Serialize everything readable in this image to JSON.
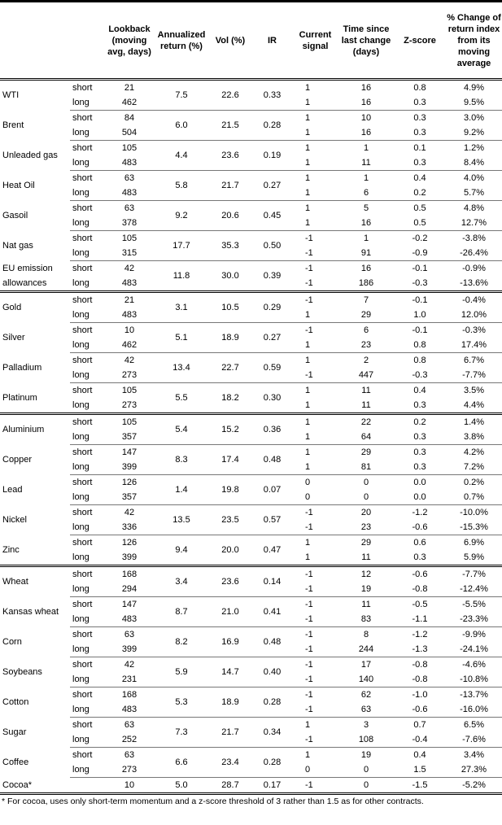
{
  "headers": [
    "",
    "",
    "Lookback (moving avg, days)",
    "Annualized return (%)",
    "Vol (%)",
    "IR",
    "Current signal",
    "Time since last change (days)",
    "Z-score",
    "% Change of return index from its moving average"
  ],
  "groups": [
    [
      {
        "name": "WTI",
        "ann": "7.5",
        "vol": "22.6",
        "ir": "0.33",
        "rows": [
          {
            "tenor": "short",
            "lookback": "21",
            "signal": "1",
            "time": "16",
            "z": "0.8",
            "pct": "4.9%"
          },
          {
            "tenor": "long",
            "lookback": "462",
            "signal": "1",
            "time": "16",
            "z": "0.3",
            "pct": "9.5%"
          }
        ]
      },
      {
        "name": "Brent",
        "ann": "6.0",
        "vol": "21.5",
        "ir": "0.28",
        "rows": [
          {
            "tenor": "short",
            "lookback": "84",
            "signal": "1",
            "time": "10",
            "z": "0.3",
            "pct": "3.0%"
          },
          {
            "tenor": "long",
            "lookback": "504",
            "signal": "1",
            "time": "16",
            "z": "0.3",
            "pct": "9.2%"
          }
        ]
      },
      {
        "name": "Unleaded gas",
        "ann": "4.4",
        "vol": "23.6",
        "ir": "0.19",
        "rows": [
          {
            "tenor": "short",
            "lookback": "105",
            "signal": "1",
            "time": "1",
            "z": "0.1",
            "pct": "1.2%"
          },
          {
            "tenor": "long",
            "lookback": "483",
            "signal": "1",
            "time": "11",
            "z": "0.3",
            "pct": "8.4%"
          }
        ]
      },
      {
        "name": "Heat Oil",
        "ann": "5.8",
        "vol": "21.7",
        "ir": "0.27",
        "rows": [
          {
            "tenor": "short",
            "lookback": "63",
            "signal": "1",
            "time": "1",
            "z": "0.4",
            "pct": "4.0%"
          },
          {
            "tenor": "long",
            "lookback": "483",
            "signal": "1",
            "time": "6",
            "z": "0.2",
            "pct": "5.7%"
          }
        ]
      },
      {
        "name": "Gasoil",
        "ann": "9.2",
        "vol": "20.6",
        "ir": "0.45",
        "rows": [
          {
            "tenor": "short",
            "lookback": "63",
            "signal": "1",
            "time": "5",
            "z": "0.5",
            "pct": "4.8%"
          },
          {
            "tenor": "long",
            "lookback": "378",
            "signal": "1",
            "time": "16",
            "z": "0.5",
            "pct": "12.7%"
          }
        ]
      },
      {
        "name": "Nat gas",
        "ann": "17.7",
        "vol": "35.3",
        "ir": "0.50",
        "rows": [
          {
            "tenor": "short",
            "lookback": "105",
            "signal": "-1",
            "time": "1",
            "z": "-0.2",
            "pct": "-3.8%"
          },
          {
            "tenor": "long",
            "lookback": "315",
            "signal": "-1",
            "time": "91",
            "z": "-0.9",
            "pct": "-26.4%"
          }
        ]
      },
      {
        "name": "EU emission allowances",
        "ann": "11.8",
        "vol": "30.0",
        "ir": "0.39",
        "rows": [
          {
            "tenor": "short",
            "lookback": "42",
            "signal": "-1",
            "time": "16",
            "z": "-0.1",
            "pct": "-0.9%"
          },
          {
            "tenor": "long",
            "lookback": "483",
            "signal": "-1",
            "time": "186",
            "z": "-0.3",
            "pct": "-13.6%"
          }
        ]
      }
    ],
    [
      {
        "name": "Gold",
        "ann": "3.1",
        "vol": "10.5",
        "ir": "0.29",
        "rows": [
          {
            "tenor": "short",
            "lookback": "21",
            "signal": "-1",
            "time": "7",
            "z": "-0.1",
            "pct": "-0.4%"
          },
          {
            "tenor": "long",
            "lookback": "483",
            "signal": "1",
            "time": "29",
            "z": "1.0",
            "pct": "12.0%"
          }
        ]
      },
      {
        "name": "Silver",
        "ann": "5.1",
        "vol": "18.9",
        "ir": "0.27",
        "rows": [
          {
            "tenor": "short",
            "lookback": "10",
            "signal": "-1",
            "time": "6",
            "z": "-0.1",
            "pct": "-0.3%"
          },
          {
            "tenor": "long",
            "lookback": "462",
            "signal": "1",
            "time": "23",
            "z": "0.8",
            "pct": "17.4%"
          }
        ]
      },
      {
        "name": "Palladium",
        "ann": "13.4",
        "vol": "22.7",
        "ir": "0.59",
        "rows": [
          {
            "tenor": "short",
            "lookback": "42",
            "signal": "1",
            "time": "2",
            "z": "0.8",
            "pct": "6.7%"
          },
          {
            "tenor": "long",
            "lookback": "273",
            "signal": "-1",
            "time": "447",
            "z": "-0.3",
            "pct": "-7.7%"
          }
        ]
      },
      {
        "name": "Platinum",
        "ann": "5.5",
        "vol": "18.2",
        "ir": "0.30",
        "rows": [
          {
            "tenor": "short",
            "lookback": "105",
            "signal": "1",
            "time": "11",
            "z": "0.4",
            "pct": "3.5%"
          },
          {
            "tenor": "long",
            "lookback": "273",
            "signal": "1",
            "time": "11",
            "z": "0.3",
            "pct": "4.4%"
          }
        ]
      }
    ],
    [
      {
        "name": "Aluminium",
        "ann": "5.4",
        "vol": "15.2",
        "ir": "0.36",
        "rows": [
          {
            "tenor": "short",
            "lookback": "105",
            "signal": "1",
            "time": "22",
            "z": "0.2",
            "pct": "1.4%"
          },
          {
            "tenor": "long",
            "lookback": "357",
            "signal": "1",
            "time": "64",
            "z": "0.3",
            "pct": "3.8%"
          }
        ]
      },
      {
        "name": "Copper",
        "ann": "8.3",
        "vol": "17.4",
        "ir": "0.48",
        "rows": [
          {
            "tenor": "short",
            "lookback": "147",
            "signal": "1",
            "time": "29",
            "z": "0.3",
            "pct": "4.2%"
          },
          {
            "tenor": "long",
            "lookback": "399",
            "signal": "1",
            "time": "81",
            "z": "0.3",
            "pct": "7.2%"
          }
        ]
      },
      {
        "name": "Lead",
        "ann": "1.4",
        "vol": "19.8",
        "ir": "0.07",
        "rows": [
          {
            "tenor": "short",
            "lookback": "126",
            "signal": "0",
            "time": "0",
            "z": "0.0",
            "pct": "0.2%"
          },
          {
            "tenor": "long",
            "lookback": "357",
            "signal": "0",
            "time": "0",
            "z": "0.0",
            "pct": "0.7%"
          }
        ]
      },
      {
        "name": "Nickel",
        "ann": "13.5",
        "vol": "23.5",
        "ir": "0.57",
        "rows": [
          {
            "tenor": "short",
            "lookback": "42",
            "signal": "-1",
            "time": "20",
            "z": "-1.2",
            "pct": "-10.0%"
          },
          {
            "tenor": "long",
            "lookback": "336",
            "signal": "-1",
            "time": "23",
            "z": "-0.6",
            "pct": "-15.3%"
          }
        ]
      },
      {
        "name": "Zinc",
        "ann": "9.4",
        "vol": "20.0",
        "ir": "0.47",
        "rows": [
          {
            "tenor": "short",
            "lookback": "126",
            "signal": "1",
            "time": "29",
            "z": "0.6",
            "pct": "6.9%"
          },
          {
            "tenor": "long",
            "lookback": "399",
            "signal": "1",
            "time": "11",
            "z": "0.3",
            "pct": "5.9%"
          }
        ]
      }
    ],
    [
      {
        "name": "Wheat",
        "ann": "3.4",
        "vol": "23.6",
        "ir": "0.14",
        "rows": [
          {
            "tenor": "short",
            "lookback": "168",
            "signal": "-1",
            "time": "12",
            "z": "-0.6",
            "pct": "-7.7%"
          },
          {
            "tenor": "long",
            "lookback": "294",
            "signal": "-1",
            "time": "19",
            "z": "-0.8",
            "pct": "-12.4%"
          }
        ]
      },
      {
        "name": "Kansas wheat",
        "ann": "8.7",
        "vol": "21.0",
        "ir": "0.41",
        "rows": [
          {
            "tenor": "short",
            "lookback": "147",
            "signal": "-1",
            "time": "11",
            "z": "-0.5",
            "pct": "-5.5%"
          },
          {
            "tenor": "long",
            "lookback": "483",
            "signal": "-1",
            "time": "83",
            "z": "-1.1",
            "pct": "-23.3%"
          }
        ]
      },
      {
        "name": "Corn",
        "ann": "8.2",
        "vol": "16.9",
        "ir": "0.48",
        "rows": [
          {
            "tenor": "short",
            "lookback": "63",
            "signal": "-1",
            "time": "8",
            "z": "-1.2",
            "pct": "-9.9%"
          },
          {
            "tenor": "long",
            "lookback": "399",
            "signal": "-1",
            "time": "244",
            "z": "-1.3",
            "pct": "-24.1%"
          }
        ]
      },
      {
        "name": "Soybeans",
        "ann": "5.9",
        "vol": "14.7",
        "ir": "0.40",
        "rows": [
          {
            "tenor": "short",
            "lookback": "42",
            "signal": "-1",
            "time": "17",
            "z": "-0.8",
            "pct": "-4.6%"
          },
          {
            "tenor": "long",
            "lookback": "231",
            "signal": "-1",
            "time": "140",
            "z": "-0.8",
            "pct": "-10.8%"
          }
        ]
      },
      {
        "name": "Cotton",
        "ann": "5.3",
        "vol": "18.9",
        "ir": "0.28",
        "rows": [
          {
            "tenor": "short",
            "lookback": "168",
            "signal": "-1",
            "time": "62",
            "z": "-1.0",
            "pct": "-13.7%"
          },
          {
            "tenor": "long",
            "lookback": "483",
            "signal": "-1",
            "time": "63",
            "z": "-0.6",
            "pct": "-16.0%"
          }
        ]
      },
      {
        "name": "Sugar",
        "ann": "7.3",
        "vol": "21.7",
        "ir": "0.34",
        "rows": [
          {
            "tenor": "short",
            "lookback": "63",
            "signal": "1",
            "time": "3",
            "z": "0.7",
            "pct": "6.5%"
          },
          {
            "tenor": "long",
            "lookback": "252",
            "signal": "-1",
            "time": "108",
            "z": "-0.4",
            "pct": "-7.6%"
          }
        ]
      },
      {
        "name": "Coffee",
        "ann": "6.6",
        "vol": "23.4",
        "ir": "0.28",
        "rows": [
          {
            "tenor": "short",
            "lookback": "63",
            "signal": "1",
            "time": "19",
            "z": "0.4",
            "pct": "3.4%"
          },
          {
            "tenor": "long",
            "lookback": "273",
            "signal": "0",
            "time": "0",
            "z": "1.5",
            "pct": "27.3%"
          }
        ]
      },
      {
        "name": "Cocoa*",
        "ann": "5.0",
        "vol": "28.7",
        "ir": "0.17",
        "rows": [
          {
            "tenor": "",
            "lookback": "10",
            "signal": "-1",
            "time": "0",
            "z": "-1.5",
            "pct": "-5.2%"
          }
        ]
      }
    ]
  ],
  "footnote": "* For cocoa, uses only short-term momentum and a z-score threshold of 3 rather than 1.5 as for other contracts."
}
